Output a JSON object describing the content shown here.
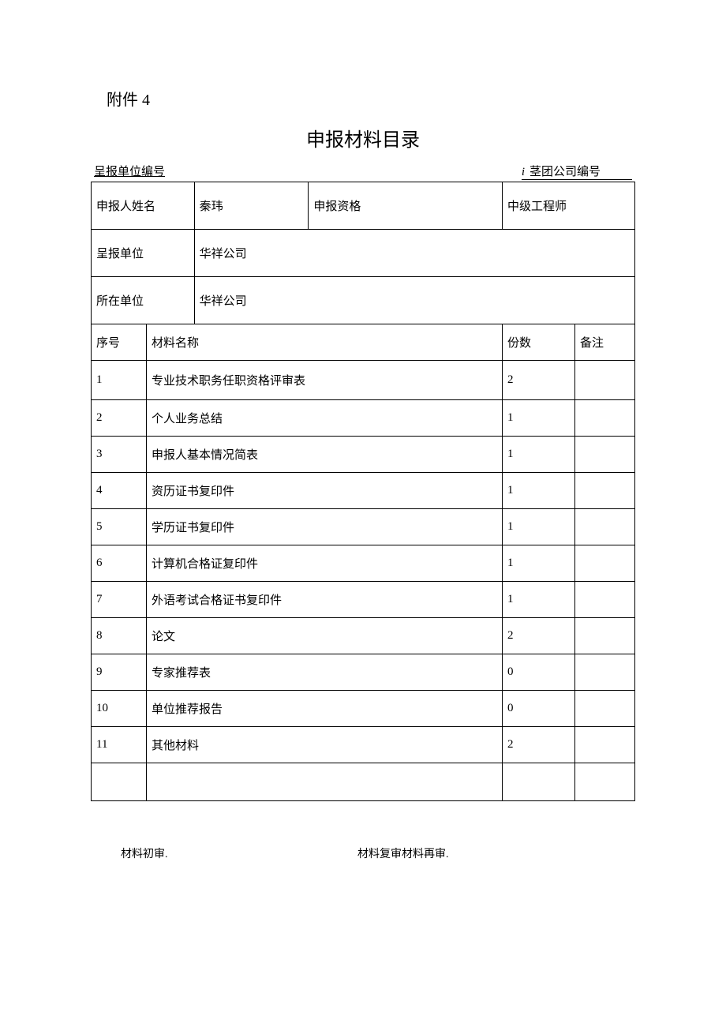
{
  "attachment_label": "附件 4",
  "title": "申报材料目录",
  "header": {
    "left_label": "呈报单位编号",
    "i_char": "i",
    "right_label": "茎团公司编号"
  },
  "info": {
    "applicant_name_label": "申报人姓名",
    "applicant_name_value": "秦玮",
    "qualification_label": "申报资格",
    "qualification_value": "中级工程师",
    "report_unit_label": "呈报单位",
    "report_unit_value": "华祥公司",
    "work_unit_label": "所在单位",
    "work_unit_value": "华祥公司"
  },
  "table_header": {
    "seq": "序号",
    "name": "材料名称",
    "qty": "份数",
    "note": "备注"
  },
  "materials": [
    {
      "seq": "1",
      "name": "专业技术职务任职资格评审表",
      "qty": "2",
      "note": ""
    },
    {
      "seq": "2",
      "name": "个人业务总结",
      "qty": "1",
      "note": ""
    },
    {
      "seq": "3",
      "name": "申报人基本情况简表",
      "qty": "1",
      "note": ""
    },
    {
      "seq": "4",
      "name": "资历证书复印件",
      "qty": "1",
      "note": ""
    },
    {
      "seq": "5",
      "name": "学历证书复印件",
      "qty": "1",
      "note": ""
    },
    {
      "seq": "6",
      "name": "计算机合格证复印件",
      "qty": "1",
      "note": ""
    },
    {
      "seq": "7",
      "name": "外语考试合格证书复印件",
      "qty": "1",
      "note": ""
    },
    {
      "seq": "8",
      "name": "论文",
      "qty": "2",
      "note": ""
    },
    {
      "seq": "9",
      "name": "专家推荐表",
      "qty": "0",
      "note": ""
    },
    {
      "seq": "10",
      "name": "单位推荐报告",
      "qty": "0",
      "note": ""
    },
    {
      "seq": "11",
      "name": "其他材料",
      "qty": "2",
      "note": ""
    }
  ],
  "footer": {
    "left": "材料初审.",
    "right": "材料复审材料再审."
  },
  "colors": {
    "text": "#000000",
    "background": "#ffffff",
    "border": "#000000"
  }
}
